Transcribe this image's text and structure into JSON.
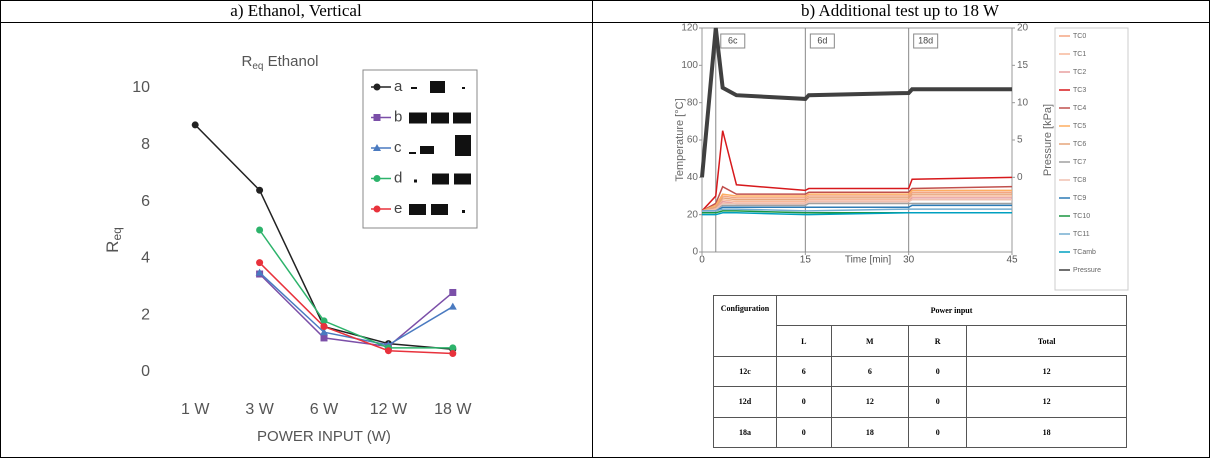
{
  "panels": [
    "a) Ethanol, Vertical",
    "b) Additional test up to 18 W"
  ],
  "chart_data": [
    {
      "type": "line",
      "title": [
        "R",
        "eq",
        " Ethanol"
      ],
      "ylabel": [
        "R",
        "eq"
      ],
      "xlabel": "POWER INPUT (W)",
      "categories": [
        "1 W",
        "3 W",
        "6 W",
        "12 W",
        "18 W"
      ],
      "ylim": [
        0,
        10
      ],
      "yticks": [
        0,
        2,
        4,
        6,
        8,
        10
      ],
      "grid": false,
      "series": [
        {
          "name": "a",
          "color": "#222222",
          "marker": "circle",
          "values": [
            8.7,
            6.4,
            1.6,
            1.0,
            0.8
          ]
        },
        {
          "name": "b",
          "color": "#7b4fa8",
          "marker": "square",
          "values": [
            null,
            3.45,
            1.2,
            0.9,
            2.8
          ]
        },
        {
          "name": "c",
          "color": "#4a7ac0",
          "marker": "triangle",
          "values": [
            null,
            3.5,
            1.4,
            0.95,
            2.3
          ]
        },
        {
          "name": "d",
          "color": "#2db36b",
          "marker": "circle",
          "values": [
            null,
            5.0,
            1.8,
            0.85,
            0.85
          ]
        },
        {
          "name": "e",
          "color": "#e8323c",
          "marker": "circle",
          "values": [
            null,
            3.85,
            1.6,
            0.75,
            0.65
          ]
        }
      ]
    },
    {
      "type": "line",
      "xlabel": "Time [min]",
      "ylabel": "Temperature [°C]",
      "y2label": "Pressure [kPa]",
      "x": [
        0,
        2,
        3,
        5,
        15,
        15.5,
        30,
        30.5,
        45
      ],
      "xlim": [
        0,
        45
      ],
      "xticks": [
        0,
        15,
        30,
        45
      ],
      "ylim": [
        0,
        120
      ],
      "yticks": [
        0,
        20,
        40,
        60,
        80,
        100,
        120
      ],
      "y2lim": [
        -10,
        20
      ],
      "y2ticks": [
        0,
        5,
        10,
        15,
        20
      ],
      "annotations": [
        {
          "text": "6c",
          "x": 2
        },
        {
          "text": "6d",
          "x": 15
        },
        {
          "text": "18d",
          "x": 30
        }
      ],
      "series": [
        {
          "name": "TC0",
          "color": "#f4a582",
          "values": [
            22,
            24,
            30,
            29,
            29,
            30,
            30,
            32,
            32
          ]
        },
        {
          "name": "TC1",
          "color": "#f7b89a",
          "values": [
            22,
            24,
            28,
            27,
            27,
            28,
            28,
            30,
            30
          ]
        },
        {
          "name": "TC2",
          "color": "#e8a0a0",
          "values": [
            22,
            23,
            27,
            26,
            26,
            27,
            27,
            29,
            29
          ]
        },
        {
          "name": "TC3",
          "color": "#d7191c",
          "values": [
            22,
            30,
            65,
            36,
            33,
            34,
            34,
            39,
            40
          ]
        },
        {
          "name": "TC4",
          "color": "#c0504d",
          "values": [
            22,
            26,
            35,
            31,
            31,
            32,
            32,
            34,
            35
          ]
        },
        {
          "name": "TC5",
          "color": "#fdae61",
          "values": [
            22,
            25,
            31,
            30,
            30,
            31,
            31,
            33,
            33
          ]
        },
        {
          "name": "TC6",
          "color": "#e6a57a",
          "values": [
            22,
            24,
            29,
            28,
            28,
            29,
            29,
            31,
            31
          ]
        },
        {
          "name": "TC7",
          "color": "#a0a0a0",
          "values": [
            22,
            23,
            25,
            25,
            25,
            26,
            26,
            26,
            26
          ]
        },
        {
          "name": "TC8",
          "color": "#f0c0b0",
          "values": [
            22,
            23,
            26,
            26,
            26,
            27,
            27,
            28,
            28
          ]
        },
        {
          "name": "TC9",
          "color": "#2c7bb6",
          "values": [
            22,
            22,
            24,
            24,
            24,
            24,
            24,
            25,
            25
          ]
        },
        {
          "name": "TC10",
          "color": "#1a9641",
          "values": [
            21,
            21,
            22,
            22,
            21,
            21,
            21,
            21,
            21
          ]
        },
        {
          "name": "TC11",
          "color": "#74add1",
          "values": [
            22,
            22,
            23,
            23,
            22,
            22,
            23,
            23,
            23
          ]
        },
        {
          "name": "TCamb",
          "color": "#00a0c0",
          "values": [
            20,
            20,
            21,
            21,
            20,
            20,
            21,
            21,
            21
          ]
        },
        {
          "name": "Pressure",
          "color": "#404040",
          "axis": "y2",
          "values": [
            0,
            20,
            12,
            11,
            10.5,
            11,
            11.3,
            11.8,
            11.8
          ]
        }
      ]
    }
  ],
  "table": {
    "header": [
      "Configuration",
      "Power input"
    ],
    "subheader": [
      "L",
      "M",
      "R",
      "Total"
    ],
    "rows": [
      [
        "12c",
        "6",
        "6",
        "0",
        "12"
      ],
      [
        "12d",
        "0",
        "12",
        "0",
        "12"
      ],
      [
        "18a",
        "0",
        "18",
        "0",
        "18"
      ]
    ]
  }
}
